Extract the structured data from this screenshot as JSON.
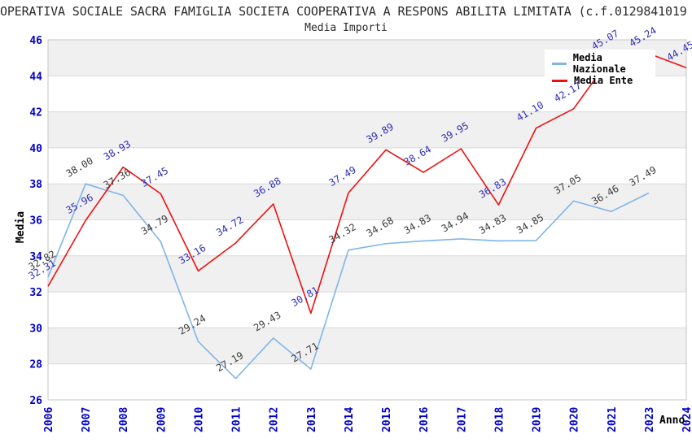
{
  "chart_data": {
    "type": "line",
    "title": "OPERATIVA SOCIALE SACRA FAMIGLIA SOCIETA COOPERATIVA A RESPONS ABILITA LIMITATA (c.f.0129841019",
    "subtitle": "Media Importi",
    "xlabel": "Anno",
    "ylabel": "Media",
    "ylim": [
      26,
      46
    ],
    "ytick_step": 2,
    "grid": "horizontal",
    "band_fill": "alternating",
    "legend_position": "top-right",
    "categories": [
      "2006",
      "2007",
      "2008",
      "2009",
      "2010",
      "2011",
      "2012",
      "2013",
      "2014",
      "2015",
      "2016",
      "2017",
      "2018",
      "2019",
      "2020",
      "2021",
      "2023",
      "2024"
    ],
    "series": [
      {
        "name": "Media Nazionale",
        "color": "#7fb5e9",
        "label_color": "#3c3c3c",
        "values": [
          32.82,
          38.0,
          37.36,
          34.79,
          29.24,
          27.19,
          29.43,
          27.71,
          34.32,
          34.68,
          34.83,
          34.94,
          34.83,
          34.85,
          37.05,
          36.46,
          37.49,
          null
        ]
      },
      {
        "name": "Media Ente",
        "color": "#ee1111",
        "label_color": "#2e2eb8",
        "values": [
          32.31,
          35.96,
          38.93,
          37.45,
          33.16,
          34.72,
          36.88,
          30.81,
          37.49,
          39.89,
          38.64,
          39.95,
          36.83,
          41.1,
          42.17,
          45.07,
          45.24,
          44.45
        ]
      }
    ],
    "style": {
      "band_gray": "#f0f0f0",
      "grid_color": "#d9d9d9",
      "border_color": "#c6c6c6",
      "tick_label_color": "#0000cc",
      "title_color": "#2b2b2b"
    }
  }
}
